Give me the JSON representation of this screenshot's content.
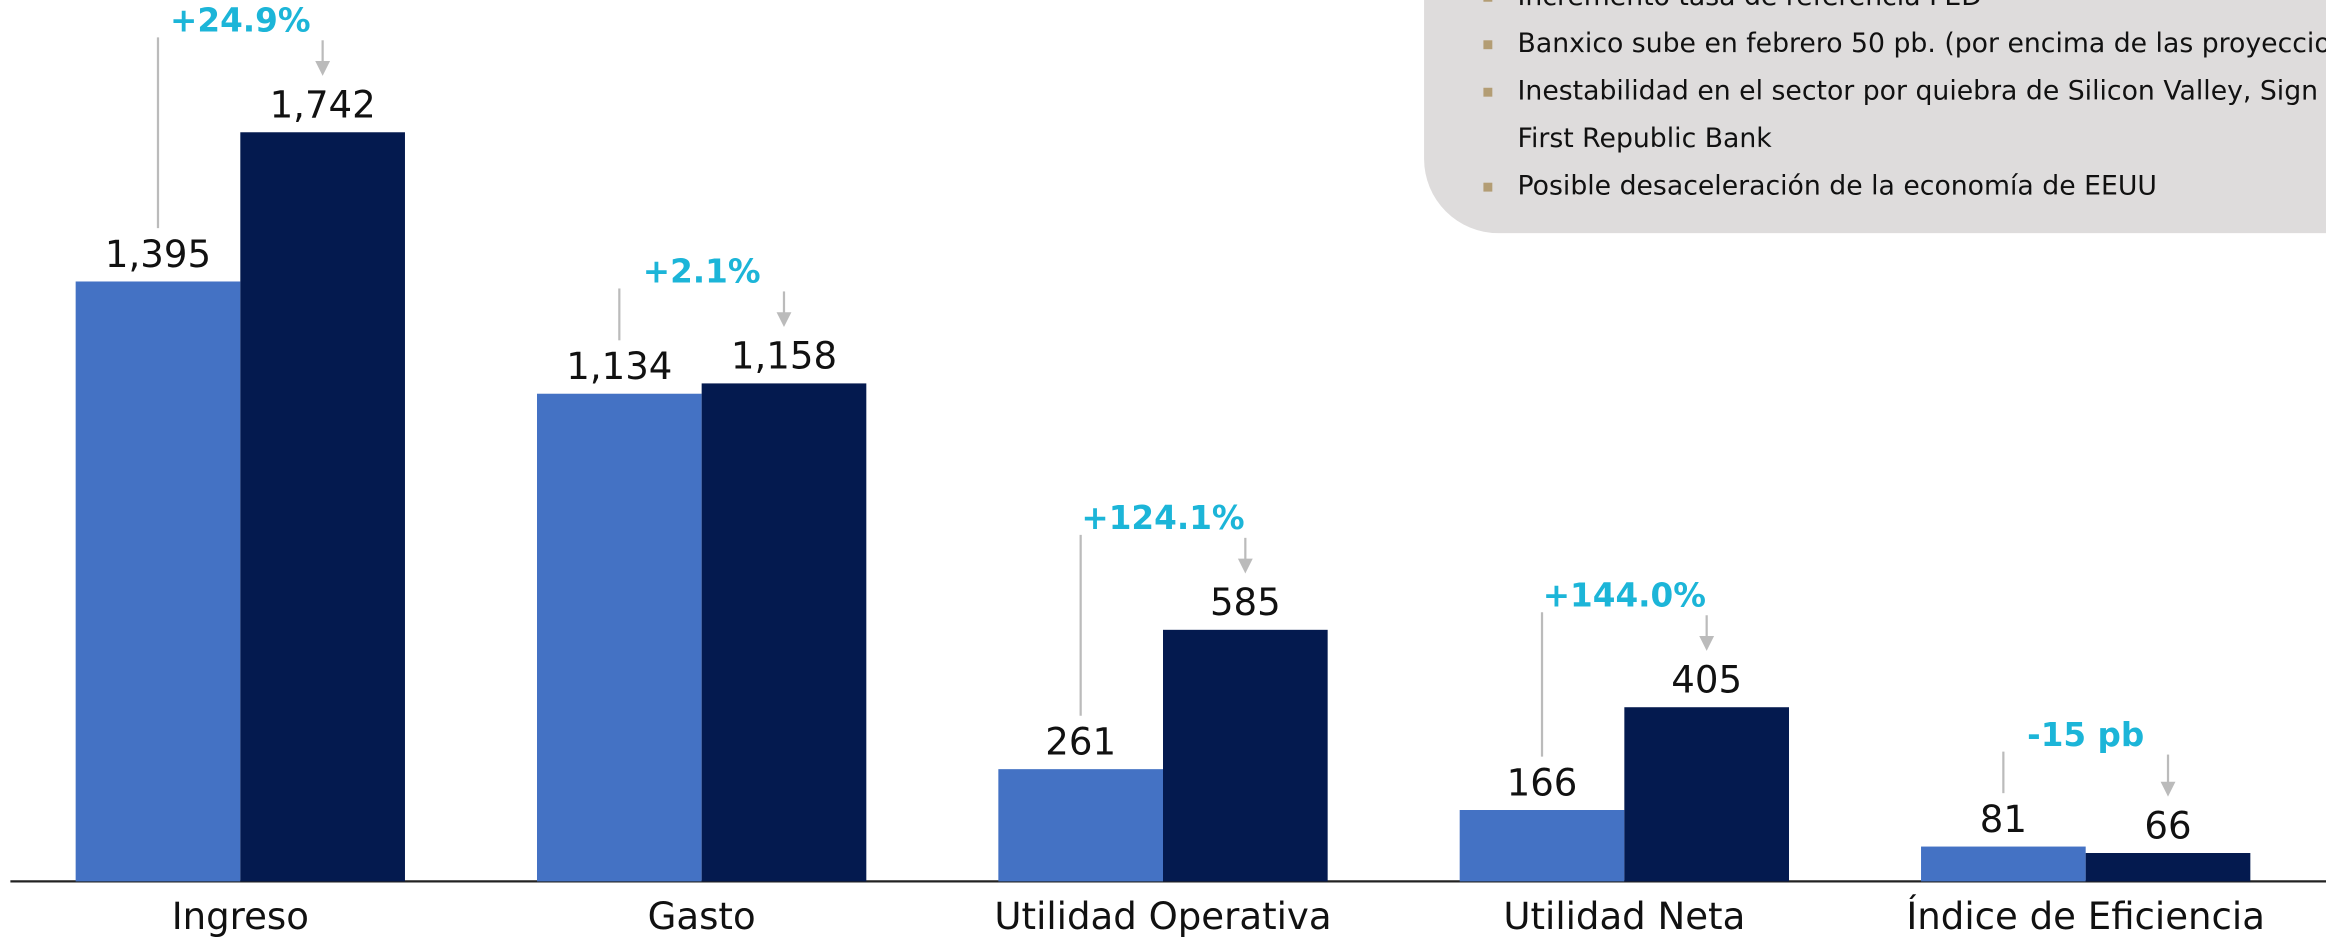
{
  "chart_data": {
    "type": "bar",
    "categories": [
      "Ingreso",
      "Gasto",
      "Utilidad Operativa",
      "Utilidad Neta",
      "Índice de Eficiencia"
    ],
    "series": [
      {
        "color": "#4472c4",
        "values": [
          1395,
          1134,
          261,
          166,
          81
        ],
        "value_labels": [
          "1,395",
          "1,134",
          "261",
          "166",
          "81"
        ]
      },
      {
        "color": "#041a4f",
        "values": [
          1742,
          1158,
          585,
          405,
          66
        ],
        "value_labels": [
          "1,742",
          "1,158",
          "585",
          "405",
          "66"
        ]
      }
    ],
    "annotations": [
      "+24.9%",
      "+2.1%",
      "+124.1%",
      "+144.0%",
      "-15 pb"
    ],
    "annotation_color": "#1cb5d8"
  },
  "notes_box": {
    "items": [
      {
        "lines": [
          "Incremento tasa de referencia FED"
        ]
      },
      {
        "lines": [
          "Banxico sube en febrero 50 pb. (por encima de las proyeccio"
        ]
      },
      {
        "lines": [
          "Inestabilidad en el sector por quiebra de Silicon Valley, Sign",
          "First Republic Bank"
        ]
      },
      {
        "lines": [
          "Posible desaceleración de la economía de EEUU"
        ]
      }
    ]
  }
}
